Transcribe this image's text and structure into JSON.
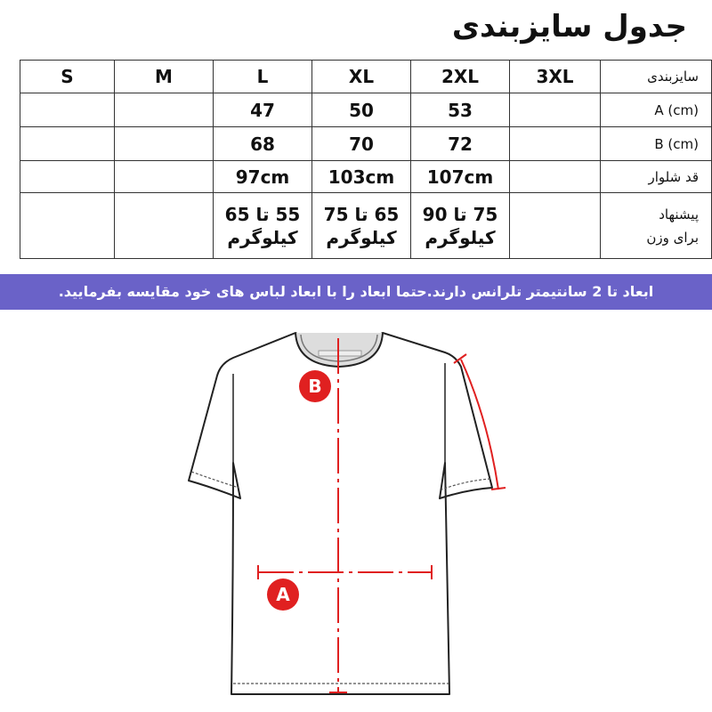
{
  "title": "جدول سایزبندی",
  "table": {
    "header": {
      "label": "سایزبندی",
      "sizes": [
        "3XL",
        "2XL",
        "XL",
        "L",
        "M",
        "S"
      ]
    },
    "rows": [
      {
        "label": "A (cm)",
        "cells": {
          "2XL": 53,
          "XL": 50,
          "L": 47
        }
      },
      {
        "label": "B (cm)",
        "cells": {
          "2XL": 72,
          "XL": 70,
          "L": 68
        }
      },
      {
        "label": "قد شلوار",
        "cells": {
          "2XL": "107cm",
          "XL": "103cm",
          "L": "97cm"
        }
      },
      {
        "label": [
          "پیشنهاد",
          "برای وزن"
        ],
        "cells": {
          "2XL": [
            "75 تا 90",
            "کیلوگرم"
          ],
          "XL": [
            "65 تا 75",
            "کیلوگرم"
          ],
          "L": [
            "55 تا 65",
            "کیلوگرم"
          ]
        }
      }
    ]
  },
  "note": "ابعاد تا 2 سانتیمتر تلرانس دارند.حتما ابعاد را با ابعاد لباس های خود مقایسه بفرمایید.",
  "diagram": {
    "labels": {
      "a": "A",
      "b": "B"
    }
  }
}
